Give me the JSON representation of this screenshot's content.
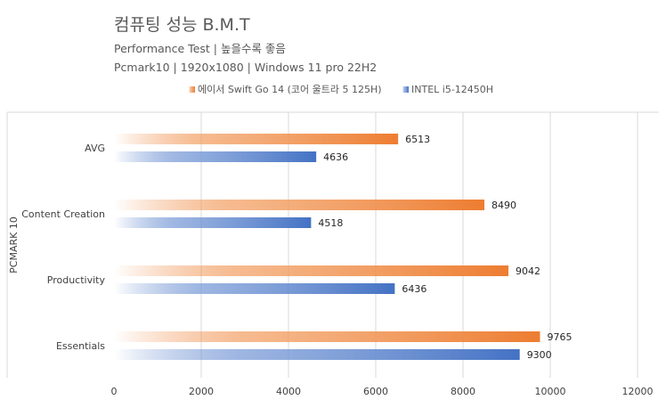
{
  "chart_data": {
    "type": "bar",
    "orientation": "horizontal",
    "title": "컴퓨팅 성능 B.M.T",
    "subtitle_lines": [
      "Performance Test | 높을수록 좋음",
      "Pcmark10 | 1920x1080 | Windows 11 pro 22H2"
    ],
    "ylabel": "PCMARK 10",
    "xlabel": "",
    "categories": [
      "AVG",
      "Content Creation",
      "Productivity",
      "Essentials"
    ],
    "series": [
      {
        "name": "에이서 Swift Go 14 (코어 울트라 5 125H)",
        "values": [
          6513,
          8490,
          9042,
          9765
        ],
        "color": "#ed7d31"
      },
      {
        "name": "INTEL i5-12450H",
        "values": [
          4636,
          4518,
          6436,
          9300
        ],
        "color": "#4472c4"
      }
    ],
    "xlim": [
      0,
      12000
    ],
    "xticks": [
      "0",
      "2000",
      "4000",
      "6000",
      "8000",
      "10000",
      "12000"
    ],
    "grid": true,
    "legend_position": "top"
  }
}
